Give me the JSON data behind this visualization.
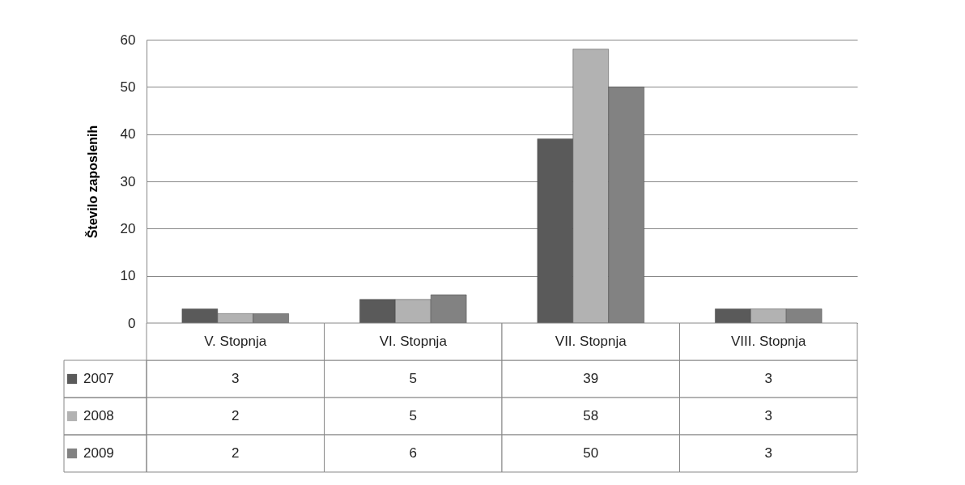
{
  "chart_data": {
    "type": "bar",
    "ylabel": "Število zaposlenih",
    "categories": [
      "V. Stopnja",
      "VI. Stopnja",
      "VII. Stopnja",
      "VIII. Stopnja"
    ],
    "series": [
      {
        "name": "2007",
        "color": "#5a5a5a",
        "values": [
          3,
          5,
          39,
          3
        ]
      },
      {
        "name": "2008",
        "color": "#b2b2b2",
        "values": [
          2,
          5,
          58,
          3
        ]
      },
      {
        "name": "2009",
        "color": "#828282",
        "values": [
          2,
          6,
          50,
          3
        ]
      }
    ],
    "ylim": [
      0,
      60
    ],
    "yticks": [
      0,
      10,
      20,
      30,
      40,
      50,
      60
    ],
    "grid": "y",
    "data_labels": true,
    "legend": "bottom"
  }
}
